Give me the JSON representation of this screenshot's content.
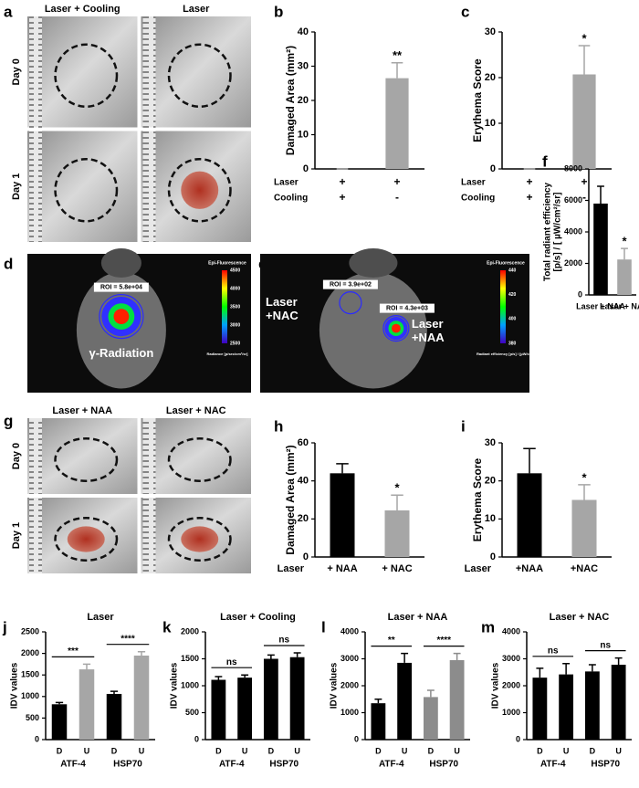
{
  "panels": [
    {
      "letter": "a",
      "column_labels": [
        "Laser + Cooling",
        "Laser"
      ],
      "row_labels": [
        "Day 0",
        "Day 1"
      ]
    },
    {
      "letter": "d",
      "roi_labels": [
        "ROI = 5.8e+04"
      ],
      "labels": [
        [
          "γ-Radiation"
        ]
      ],
      "scale_title": "Epi-Fluorescence",
      "scale_ticks": [
        "4500",
        "4000",
        "3500",
        "3000",
        "2500"
      ],
      "scale_unit": "Radiance [p/sec/cm²/sr]"
    },
    {
      "letter": "e",
      "roi_labels": [
        "ROI = 3.9e+02",
        "ROI = 4.3e+03"
      ],
      "labels": [
        [
          "Laser",
          "+NAC"
        ],
        [
          "Laser",
          "+NAA"
        ]
      ],
      "scale_title": "Epi-Fluorescence",
      "scale_ticks": [
        "440",
        "420",
        "400",
        "380"
      ],
      "scale_unit": "Radiant efficiency [p/s] / [µW/cm²]"
    },
    {
      "letter": "g",
      "column_labels": [
        "Laser + NAA",
        "Laser + NAC"
      ],
      "row_labels": [
        "Day 0",
        "Day 1"
      ]
    }
  ],
  "chart_data": [
    {
      "type": "bar",
      "panel": "b",
      "ylabel": [
        "Damaged Area (mm²)"
      ],
      "ylim": [
        0,
        40
      ],
      "yticks": [
        0,
        10,
        20,
        30,
        40
      ],
      "values": [
        0,
        26.5
      ],
      "errors": [
        0,
        4.5
      ],
      "colors": [
        "#a6a6a6",
        "#a6a6a6"
      ],
      "significance": [
        null,
        "**"
      ],
      "condition_rows": [
        {
          "name": "Laser",
          "marks": [
            "+",
            "+"
          ]
        },
        {
          "name": "Cooling",
          "marks": [
            "+",
            "-"
          ]
        }
      ]
    },
    {
      "type": "bar",
      "panel": "c",
      "ylabel": [
        "Erythema Score"
      ],
      "ylim": [
        0,
        30
      ],
      "yticks": [
        0,
        10,
        20,
        30
      ],
      "values": [
        0,
        20.7
      ],
      "errors": [
        0,
        6.3
      ],
      "colors": [
        "#a6a6a6",
        "#a6a6a6"
      ],
      "significance": [
        null,
        "*"
      ],
      "condition_rows": [
        {
          "name": "Laser",
          "marks": [
            "+",
            "+"
          ]
        },
        {
          "name": "Cooling",
          "marks": [
            "+",
            "-"
          ]
        }
      ]
    },
    {
      "type": "bar",
      "panel": "f",
      "ylabel": [
        "Total radiant efficiency",
        "[p/s] / [ µW/cm²/sr]"
      ],
      "ylim": [
        0,
        8000
      ],
      "yticks": [
        0,
        2000,
        4000,
        6000,
        8000
      ],
      "categories": [
        "Laser + NAA",
        "Laser + NAC"
      ],
      "values": [
        5800,
        2250
      ],
      "errors": [
        1100,
        700
      ],
      "colors": [
        "#000000",
        "#a6a6a6"
      ],
      "significance": [
        null,
        "*"
      ]
    },
    {
      "type": "bar",
      "panel": "h",
      "ylabel": [
        "Damaged Area  (mm²)"
      ],
      "ylim": [
        0,
        60
      ],
      "yticks": [
        0,
        20,
        40,
        60
      ],
      "x_prefix": "Laser",
      "categories": [
        "+ NAA",
        "+ NAC"
      ],
      "values": [
        44,
        24.5
      ],
      "errors": [
        5,
        8
      ],
      "colors": [
        "#000000",
        "#a6a6a6"
      ],
      "significance": [
        null,
        "*"
      ]
    },
    {
      "type": "bar",
      "panel": "i",
      "ylabel": [
        "Erythema Score"
      ],
      "ylim": [
        0,
        30
      ],
      "yticks": [
        0,
        10,
        20,
        30
      ],
      "x_prefix": "Laser",
      "categories": [
        "+NAA",
        "+NAC"
      ],
      "values": [
        22,
        15
      ],
      "errors": [
        6.5,
        4
      ],
      "colors": [
        "#000000",
        "#a6a6a6"
      ],
      "significance": [
        null,
        "*"
      ]
    },
    {
      "type": "bar",
      "panel": "j",
      "title": "Laser",
      "ylabel": [
        "IDV values"
      ],
      "ylim": [
        0,
        2500
      ],
      "yticks": [
        0,
        500,
        1000,
        1500,
        2000,
        2500
      ],
      "categories": [
        "D",
        "U",
        "D",
        "U"
      ],
      "values": [
        820,
        1630,
        1060,
        1950
      ],
      "errors": [
        40,
        120,
        60,
        90
      ],
      "colors": [
        "#000000",
        "#a6a6a6",
        "#000000",
        "#a6a6a6"
      ],
      "groups": [
        {
          "name": "ATF-4",
          "significance": "***"
        },
        {
          "name": "HSP70",
          "significance": "****"
        }
      ]
    },
    {
      "type": "bar",
      "panel": "k",
      "title": "Laser + Cooling",
      "ylabel": [
        "IDV values"
      ],
      "ylim": [
        0,
        2000
      ],
      "yticks": [
        0,
        500,
        1000,
        1500,
        2000
      ],
      "categories": [
        "D",
        "U",
        "D",
        "U"
      ],
      "values": [
        1110,
        1150,
        1500,
        1530
      ],
      "errors": [
        60,
        50,
        70,
        80
      ],
      "colors": [
        "#000000",
        "#000000",
        "#000000",
        "#000000"
      ],
      "groups": [
        {
          "name": "ATF-4",
          "significance": "ns"
        },
        {
          "name": "HSP70",
          "significance": "ns"
        }
      ]
    },
    {
      "type": "bar",
      "panel": "l",
      "title": "Laser + NAA",
      "ylabel": [
        "IDV values"
      ],
      "ylim": [
        0,
        4000
      ],
      "yticks": [
        0,
        1000,
        2000,
        3000,
        4000
      ],
      "categories": [
        "D",
        "U",
        "D",
        "U"
      ],
      "values": [
        1350,
        2850,
        1580,
        2950
      ],
      "errors": [
        150,
        350,
        250,
        250
      ],
      "colors": [
        "#000000",
        "#000000",
        "#8c8c8c",
        "#8c8c8c"
      ],
      "groups": [
        {
          "name": "ATF-4",
          "significance": "**"
        },
        {
          "name": "HSP70",
          "significance": "****"
        }
      ]
    },
    {
      "type": "bar",
      "panel": "m",
      "title": "Laser + NAC",
      "ylabel": [
        "IDV values"
      ],
      "ylim": [
        0,
        4000
      ],
      "yticks": [
        0,
        1000,
        2000,
        3000,
        4000
      ],
      "categories": [
        "D",
        "U",
        "D",
        "U"
      ],
      "values": [
        2300,
        2420,
        2530,
        2780
      ],
      "errors": [
        350,
        400,
        250,
        250
      ],
      "colors": [
        "#000000",
        "#000000",
        "#000000",
        "#000000"
      ],
      "groups": [
        {
          "name": "ATF-4",
          "significance": "ns"
        },
        {
          "name": "HSP70",
          "significance": "ns"
        }
      ]
    }
  ]
}
